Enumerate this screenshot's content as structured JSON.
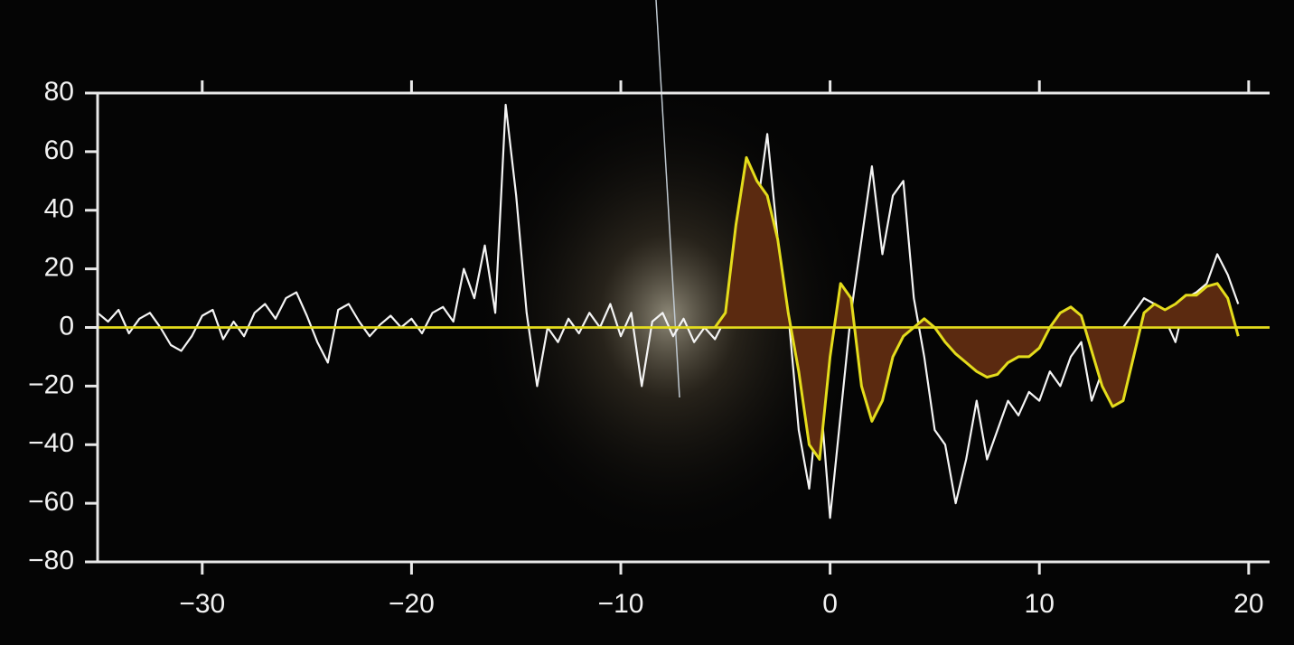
{
  "chart_data": {
    "type": "line",
    "xlim": [
      -35,
      21
    ],
    "ylim": [
      -80,
      80
    ],
    "xticks": [
      {
        "value": -30,
        "label": "−30"
      },
      {
        "value": -20,
        "label": "−20"
      },
      {
        "value": -10,
        "label": "−10"
      },
      0,
      10,
      20
    ],
    "yticks": [
      {
        "value": -80,
        "label": "−80"
      },
      {
        "value": -60,
        "label": "−60"
      },
      {
        "value": -40,
        "label": "−40"
      },
      {
        "value": -20,
        "label": "−20"
      },
      0,
      20,
      40,
      60,
      80
    ],
    "axis_color": "#e8e8e8",
    "series": [
      {
        "color": "#f4f4f4",
        "fill": null,
        "x": [
          -35,
          -34.5,
          -34,
          -33.5,
          -33,
          -32.5,
          -32,
          -31.5,
          -31,
          -30.5,
          -30,
          -29.5,
          -29,
          -28.5,
          -28,
          -27.5,
          -27,
          -26.5,
          -26,
          -25.5,
          -25,
          -24.5,
          -24,
          -23.5,
          -23,
          -22.5,
          -22,
          -21.5,
          -21,
          -20.5,
          -20,
          -19.5,
          -19,
          -18.5,
          -18,
          -17.5,
          -17,
          -16.5,
          -16,
          -15.5,
          -15,
          -14.5,
          -14,
          -13.5,
          -13,
          -12.5,
          -12,
          -11.5,
          -11,
          -10.5,
          -10,
          -9.5,
          -9,
          -8.5,
          -8,
          -7.5,
          -7,
          -6.5,
          -6,
          -5.5,
          -5,
          -4.5,
          -4,
          -3.5,
          -3,
          -2.5,
          -2,
          -1.5,
          -1,
          -0.5,
          0,
          0.5,
          1,
          1.5,
          2,
          2.5,
          3,
          3.5,
          4,
          4.5,
          5,
          5.5,
          6,
          6.5,
          7,
          7.5,
          8,
          8.5,
          9,
          9.5,
          10,
          10.5,
          11,
          11.5,
          12,
          12.5,
          13,
          13.5,
          14,
          14.5,
          15,
          15.5,
          16,
          16.5,
          17,
          17.5,
          18,
          18.5,
          19,
          19.5
        ],
        "values": [
          5,
          2,
          6,
          -2,
          3,
          5,
          0,
          -6,
          -8,
          -3,
          4,
          6,
          -4,
          2,
          -3,
          5,
          8,
          3,
          10,
          12,
          4,
          -5,
          -12,
          6,
          8,
          2,
          -3,
          1,
          4,
          0,
          3,
          -2,
          5,
          7,
          2,
          20,
          10,
          28,
          5,
          76,
          45,
          5,
          -20,
          0,
          -5,
          3,
          -2,
          5,
          0,
          8,
          -3,
          5,
          -20,
          2,
          5,
          -3,
          3,
          -5,
          0,
          -4,
          3,
          20,
          55,
          40,
          66,
          30,
          5,
          -35,
          -55,
          -20,
          -65,
          -30,
          5,
          30,
          55,
          25,
          45,
          50,
          10,
          -10,
          -35,
          -40,
          -60,
          -45,
          -25,
          -45,
          -35,
          -25,
          -30,
          -22,
          -25,
          -15,
          -20,
          -10,
          -5,
          -25,
          -15,
          -20,
          0,
          5,
          10,
          8,
          3,
          -5,
          10,
          12,
          15,
          25,
          18,
          8
        ]
      },
      {
        "color": "#e4dc1c",
        "fill": "#5b2a10",
        "x": [
          -5.5,
          -5,
          -4.5,
          -4,
          -3.5,
          -3,
          -2.5,
          -2,
          -1.5,
          -1,
          -0.5,
          0,
          0.5,
          1,
          1.5,
          2,
          2.5,
          3,
          3.5,
          4,
          4.5,
          5,
          5.5,
          6,
          6.5,
          7,
          7.5,
          8,
          8.5,
          9,
          9.5,
          10,
          10.5,
          11,
          11.5,
          12,
          12.5,
          13,
          13.5,
          14,
          14.5,
          15,
          15.5,
          16,
          16.5,
          17,
          17.5,
          18,
          18.5,
          19,
          19.5
        ],
        "values": [
          0,
          5,
          35,
          58,
          50,
          45,
          30,
          5,
          -15,
          -40,
          -45,
          -10,
          15,
          10,
          -20,
          -32,
          -25,
          -10,
          -3,
          0,
          3,
          0,
          -5,
          -9,
          -12,
          -15,
          -17,
          -16,
          -12,
          -10,
          -10,
          -7,
          0,
          5,
          7,
          4,
          -8,
          -20,
          -27,
          -25,
          -10,
          5,
          8,
          6,
          8,
          11,
          11,
          14,
          15,
          10,
          -3
        ]
      }
    ]
  }
}
